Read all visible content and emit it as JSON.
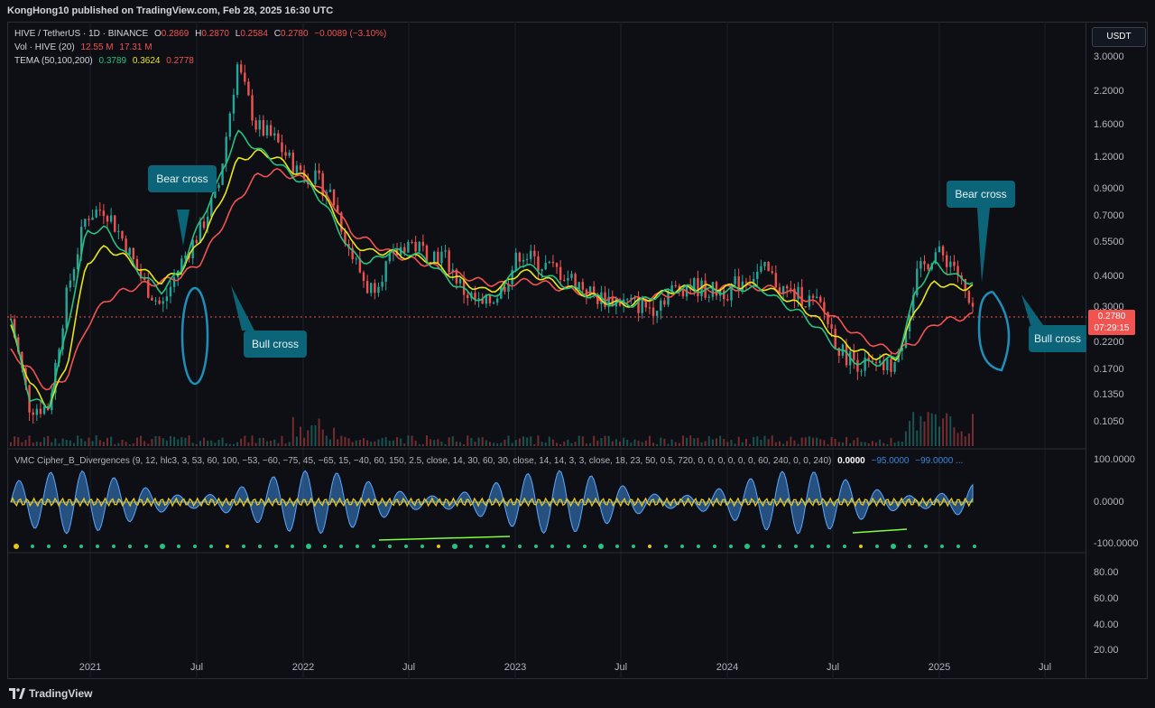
{
  "header": {
    "published": "KongHong10 published on TradingView.com, Feb 28, 2025 16:30 UTC"
  },
  "symbol": {
    "name": "HIVE / TetherUS · 1D · BINANCE",
    "open_label": "O",
    "open": "0.2869",
    "high_label": "H",
    "high": "0.2870",
    "low_label": "L",
    "low": "0.2584",
    "close_label": "C",
    "close": "0.2780",
    "change": "−0.0089 (−3.10%)"
  },
  "volume": {
    "label": "Vol · HIVE (20)",
    "v1": "12.55 M",
    "v2": "17.31 M"
  },
  "tema": {
    "label": "TEMA (50,100,200)",
    "v1": "0.3789",
    "v2": "0.3624",
    "v3": "0.2778"
  },
  "oscillator": {
    "label": "VMC Cipher_B_Divergences (9, 12, hlc3, 3, 53, 60, 100, −53, −60, −75, 45, −65, 15, −40, 60, 150, 2.5, close, 14, 30, 60, 30, close, 14, 14, 3, 3, close, 18, 23, 50, 0.5, 720, 0, 0, 0, 0, 0, 0, 60, 240, 0, 0, 240)",
    "v1": "0.0000",
    "v2": "−95.0000",
    "v3": "−99.0000 ..."
  },
  "currency_button": "USDT",
  "last_price": {
    "value": "0.2780",
    "countdown": "07:29:15"
  },
  "price_axis": [
    "3.0000",
    "2.2000",
    "1.6000",
    "1.2000",
    "0.9000",
    "0.7000",
    "0.5500",
    "0.4000",
    "0.3000",
    "0.2200",
    "0.1700",
    "0.1350",
    "0.1050"
  ],
  "osc_axis": [
    "100.0000",
    "0.0000",
    "-100.0000"
  ],
  "rsi_axis": [
    "80.00",
    "60.00",
    "40.00",
    "20.00"
  ],
  "time_axis": [
    "2021",
    "Jul",
    "2022",
    "Jul",
    "2023",
    "Jul",
    "2024",
    "Jul",
    "2025",
    "Jul"
  ],
  "annotations": {
    "bear_cross_1": "Bear cross",
    "bull_cross_1": "Bull cross",
    "bear_cross_2": "Bear cross",
    "bull_cross_2": "Bull cross"
  },
  "brand": "TradingView",
  "colors": {
    "background": "#131722",
    "up": "#26a69a",
    "down": "#ef5350",
    "tema_fast": "#26c281",
    "tema_mid": "#e6e619",
    "tema_slow": "#f05350",
    "callout": "#0b6477",
    "osc_wave": "#3a86d8"
  },
  "chart_data": {
    "type": "line",
    "title": "HIVE / TetherUS · 1D · BINANCE",
    "y_scale": "log",
    "ylim": [
      0.09,
      3.3
    ],
    "x": [
      "2020-10",
      "2020-12",
      "2021-01",
      "2021-02",
      "2021-03",
      "2021-04",
      "2021-05",
      "2021-06",
      "2021-07",
      "2021-08",
      "2021-09",
      "2021-10",
      "2021-11",
      "2021-12",
      "2022-01",
      "2022-02",
      "2022-03",
      "2022-04",
      "2022-05",
      "2022-06",
      "2022-07",
      "2022-08",
      "2022-09",
      "2022-10",
      "2022-11",
      "2022-12",
      "2023-01",
      "2023-02",
      "2023-03",
      "2023-04",
      "2023-05",
      "2023-06",
      "2023-07",
      "2023-08",
      "2023-09",
      "2023-10",
      "2023-11",
      "2023-12",
      "2024-01",
      "2024-02",
      "2024-03",
      "2024-04",
      "2024-05",
      "2024-06",
      "2024-07",
      "2024-08",
      "2024-09",
      "2024-10",
      "2024-11",
      "2024-12",
      "2025-01",
      "2025-02"
    ],
    "series": [
      {
        "values": [
          0.27,
          0.12,
          0.12,
          0.35,
          0.7,
          0.75,
          0.55,
          0.38,
          0.3,
          0.45,
          0.6,
          0.9,
          2.8,
          1.6,
          1.4,
          1.1,
          1.0,
          0.85,
          0.5,
          0.35,
          0.45,
          0.55,
          0.5,
          0.48,
          0.35,
          0.3,
          0.35,
          0.5,
          0.45,
          0.42,
          0.38,
          0.33,
          0.32,
          0.31,
          0.3,
          0.35,
          0.37,
          0.35,
          0.35,
          0.4,
          0.42,
          0.35,
          0.33,
          0.3,
          0.2,
          0.18,
          0.17,
          0.18,
          0.4,
          0.5,
          0.45,
          0.278
        ]
      },
      {
        "name": "TEMA 50",
        "values": [
          0.27,
          0.13,
          0.12,
          0.25,
          0.6,
          0.62,
          0.5,
          0.4,
          0.35,
          0.42,
          0.65,
          0.95,
          1.5,
          1.3,
          1.15,
          1.0,
          0.9,
          0.7,
          0.5,
          0.45,
          0.5,
          0.5,
          0.47,
          0.4,
          0.35,
          0.32,
          0.35,
          0.45,
          0.42,
          0.38,
          0.35,
          0.33,
          0.31,
          0.31,
          0.33,
          0.35,
          0.36,
          0.35,
          0.35,
          0.36,
          0.35,
          0.31,
          0.28,
          0.24,
          0.2,
          0.18,
          0.18,
          0.19,
          0.35,
          0.45,
          0.4,
          0.3789
        ]
      },
      {
        "name": "TEMA 100",
        "values": [
          0.25,
          0.15,
          0.12,
          0.18,
          0.45,
          0.52,
          0.48,
          0.42,
          0.38,
          0.42,
          0.55,
          0.75,
          1.15,
          1.25,
          1.2,
          1.05,
          0.95,
          0.75,
          0.55,
          0.5,
          0.5,
          0.48,
          0.47,
          0.42,
          0.38,
          0.35,
          0.36,
          0.42,
          0.4,
          0.37,
          0.35,
          0.33,
          0.31,
          0.31,
          0.33,
          0.35,
          0.36,
          0.36,
          0.36,
          0.37,
          0.36,
          0.33,
          0.3,
          0.26,
          0.22,
          0.2,
          0.19,
          0.19,
          0.3,
          0.38,
          0.36,
          0.3624
        ]
      },
      {
        "name": "TEMA 200",
        "values": [
          0.2,
          0.17,
          0.14,
          0.16,
          0.25,
          0.32,
          0.35,
          0.37,
          0.38,
          0.4,
          0.45,
          0.6,
          0.8,
          1.0,
          1.05,
          1.0,
          0.95,
          0.8,
          0.6,
          0.55,
          0.5,
          0.47,
          0.45,
          0.42,
          0.4,
          0.38,
          0.37,
          0.38,
          0.38,
          0.36,
          0.35,
          0.33,
          0.32,
          0.32,
          0.33,
          0.34,
          0.35,
          0.35,
          0.36,
          0.36,
          0.36,
          0.35,
          0.33,
          0.3,
          0.26,
          0.23,
          0.21,
          0.2,
          0.22,
          0.26,
          0.27,
          0.2778
        ]
      }
    ]
  }
}
